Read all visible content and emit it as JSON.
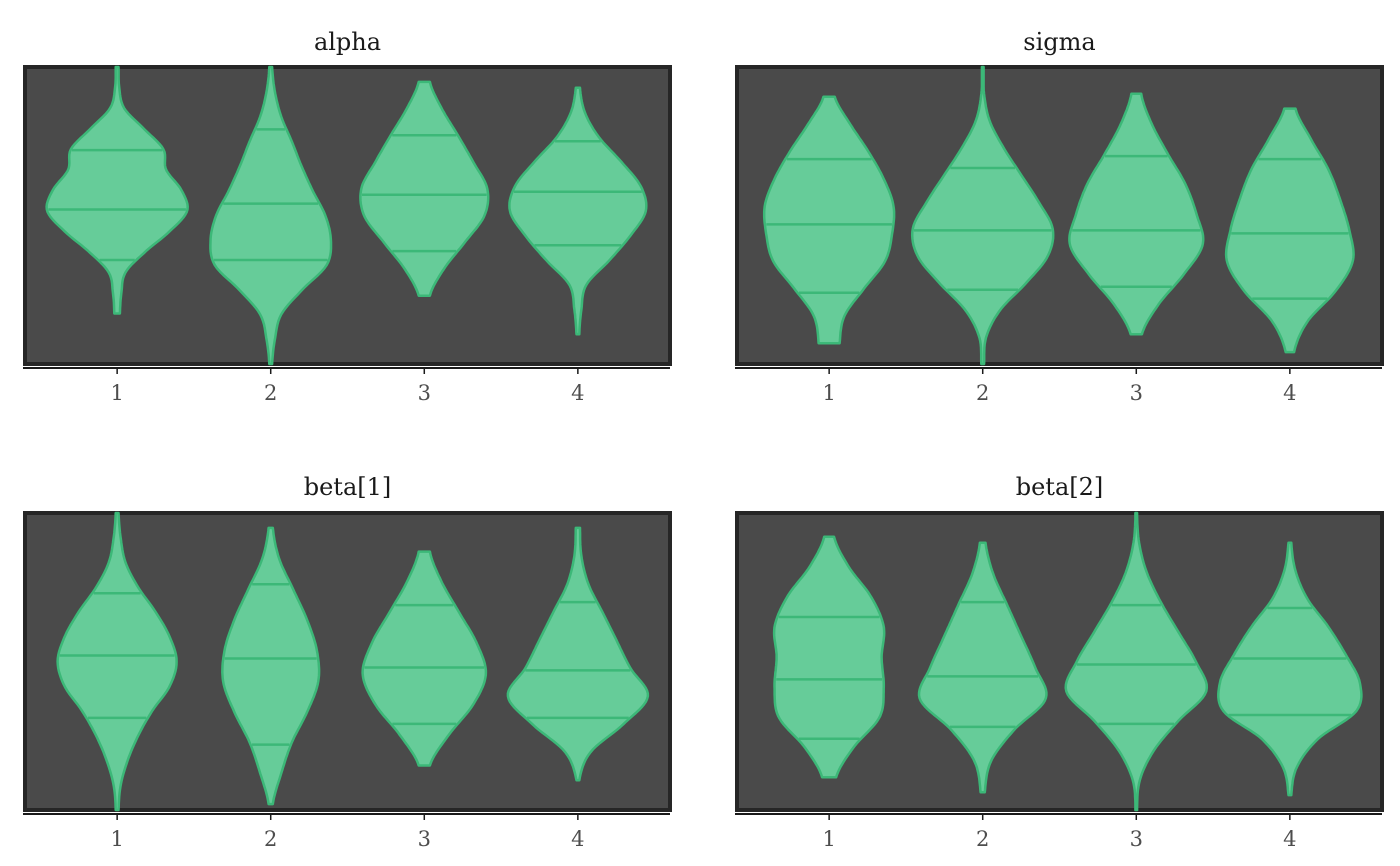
{
  "colors": {
    "panel_background": "#4a4a4a",
    "panel_border": "#262626",
    "violin_fill": "#66cc99",
    "violin_line": "#3cb878",
    "axis_line": "#1a1a1a",
    "tick_text": "#4d4d4d"
  },
  "chart_data": [
    {
      "type": "violin",
      "title": "alpha",
      "x": [
        "1",
        "2",
        "3",
        "4"
      ],
      "ylim": [
        0,
        1
      ],
      "grid": false,
      "series": [
        {
          "x": "1",
          "min": 0.17,
          "max": 1.0,
          "quantiles": [
            0.35,
            0.52,
            0.72
          ],
          "profile": [
            0.04,
            0.06,
            0.12,
            0.4,
            0.75,
            1.0,
            0.92,
            0.7,
            0.66,
            0.38,
            0.1,
            0.03,
            0.02
          ]
        },
        {
          "x": "2",
          "min": 0.0,
          "max": 1.0,
          "quantiles": [
            0.35,
            0.54,
            0.79
          ],
          "profile": [
            0.02,
            0.06,
            0.15,
            0.45,
            0.8,
            0.86,
            0.78,
            0.6,
            0.44,
            0.3,
            0.15,
            0.06,
            0.02
          ]
        },
        {
          "x": "3",
          "min": 0.23,
          "max": 0.95,
          "quantiles": [
            0.38,
            0.57,
            0.77
          ],
          "profile": [
            0.08,
            0.28,
            0.58,
            0.86,
            0.9,
            0.7,
            0.48,
            0.25,
            0.08
          ]
        },
        {
          "x": "4",
          "min": 0.1,
          "max": 0.93,
          "quantiles": [
            0.4,
            0.58,
            0.75
          ],
          "profile": [
            0.02,
            0.05,
            0.12,
            0.45,
            0.75,
            0.97,
            0.9,
            0.62,
            0.3,
            0.1,
            0.03
          ]
        }
      ]
    },
    {
      "type": "violin",
      "title": "sigma",
      "x": [
        "1",
        "2",
        "3",
        "4"
      ],
      "ylim": [
        0,
        1
      ],
      "grid": false,
      "series": [
        {
          "x": "1",
          "min": 0.07,
          "max": 0.9,
          "quantiles": [
            0.24,
            0.47,
            0.69
          ],
          "profile": [
            0.15,
            0.22,
            0.5,
            0.8,
            0.9,
            0.92,
            0.78,
            0.56,
            0.3,
            0.08
          ]
        },
        {
          "x": "2",
          "min": 0.0,
          "max": 1.0,
          "quantiles": [
            0.25,
            0.45,
            0.66
          ],
          "profile": [
            0.02,
            0.05,
            0.25,
            0.62,
            0.93,
            1.0,
            0.8,
            0.55,
            0.3,
            0.1,
            0.02,
            0.01
          ]
        },
        {
          "x": "3",
          "min": 0.1,
          "max": 0.91,
          "quantiles": [
            0.26,
            0.45,
            0.7
          ],
          "profile": [
            0.08,
            0.32,
            0.68,
            0.95,
            0.86,
            0.7,
            0.45,
            0.22,
            0.07
          ]
        },
        {
          "x": "4",
          "min": 0.04,
          "max": 0.86,
          "quantiles": [
            0.22,
            0.44,
            0.69
          ],
          "profile": [
            0.06,
            0.25,
            0.65,
            0.9,
            0.85,
            0.72,
            0.55,
            0.3,
            0.08
          ]
        }
      ]
    },
    {
      "type": "violin",
      "title": "beta[1]",
      "x": [
        "1",
        "2",
        "3",
        "4"
      ],
      "ylim": [
        0,
        1
      ],
      "grid": false,
      "series": [
        {
          "x": "1",
          "min": 0.0,
          "max": 1.0,
          "quantiles": [
            0.31,
            0.52,
            0.73
          ],
          "profile": [
            0.02,
            0.05,
            0.15,
            0.3,
            0.5,
            0.75,
            0.85,
            0.75,
            0.55,
            0.3,
            0.12,
            0.05,
            0.02
          ]
        },
        {
          "x": "2",
          "min": 0.02,
          "max": 0.95,
          "quantiles": [
            0.22,
            0.51,
            0.76
          ],
          "profile": [
            0.03,
            0.15,
            0.3,
            0.52,
            0.68,
            0.66,
            0.52,
            0.32,
            0.12,
            0.03
          ]
        },
        {
          "x": "3",
          "min": 0.15,
          "max": 0.87,
          "quantiles": [
            0.29,
            0.48,
            0.69
          ],
          "profile": [
            0.08,
            0.35,
            0.7,
            0.88,
            0.75,
            0.5,
            0.25,
            0.08
          ]
        },
        {
          "x": "4",
          "min": 0.1,
          "max": 0.95,
          "quantiles": [
            0.31,
            0.47,
            0.7
          ],
          "profile": [
            0.02,
            0.18,
            0.65,
            1.0,
            0.75,
            0.55,
            0.35,
            0.15,
            0.05,
            0.03
          ]
        }
      ]
    },
    {
      "type": "violin",
      "title": "beta[2]",
      "x": [
        "1",
        "2",
        "3",
        "4"
      ],
      "ylim": [
        0,
        1
      ],
      "grid": false,
      "series": [
        {
          "x": "1",
          "min": 0.11,
          "max": 0.92,
          "quantiles": [
            0.24,
            0.44,
            0.65
          ],
          "profile": [
            0.1,
            0.35,
            0.72,
            0.78,
            0.75,
            0.78,
            0.6,
            0.28,
            0.07
          ]
        },
        {
          "x": "2",
          "min": 0.06,
          "max": 0.9,
          "quantiles": [
            0.28,
            0.45,
            0.7
          ],
          "profile": [
            0.03,
            0.12,
            0.45,
            0.9,
            0.75,
            0.55,
            0.35,
            0.15,
            0.04
          ]
        },
        {
          "x": "3",
          "min": 0.0,
          "max": 1.0,
          "quantiles": [
            0.29,
            0.49,
            0.69
          ],
          "profile": [
            0.01,
            0.05,
            0.25,
            0.6,
            1.0,
            0.85,
            0.6,
            0.35,
            0.15,
            0.04,
            0.01
          ]
        },
        {
          "x": "4",
          "min": 0.05,
          "max": 0.9,
          "quantiles": [
            0.32,
            0.51,
            0.68
          ],
          "profile": [
            0.02,
            0.1,
            0.4,
            0.95,
            1.0,
            0.8,
            0.55,
            0.25,
            0.08,
            0.02
          ]
        }
      ]
    }
  ]
}
